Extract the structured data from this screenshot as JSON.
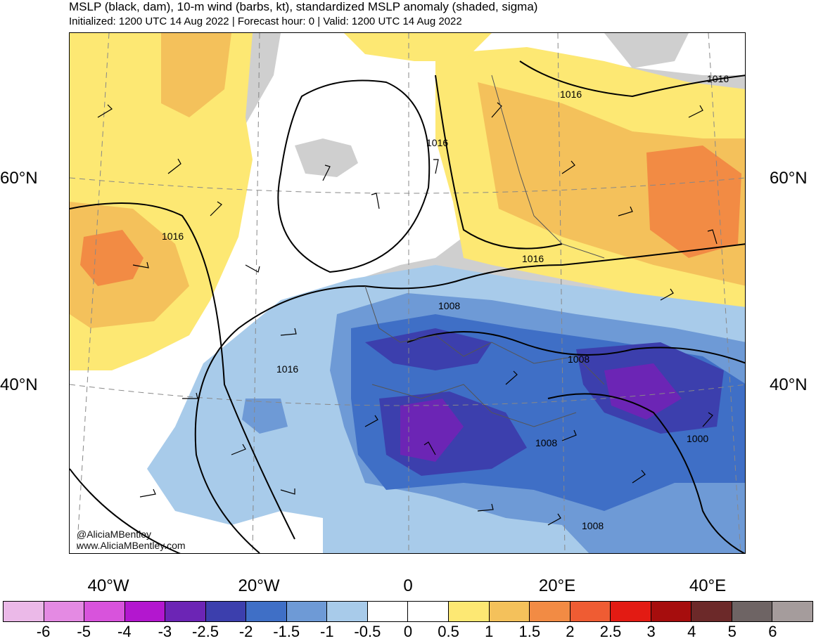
{
  "title": {
    "line1": "MSLP (black, dam), 10-m wind (barbs, kt), standardized MSLP anomaly (shaded, sigma)",
    "line2": "Initialized: 1200 UTC 14 Aug 2022 | Forecast hour: 0 | Valid: 1200 UTC 14 Aug 2022"
  },
  "map": {
    "lat_labels": [
      "60°N",
      "40°N",
      "60°N",
      "40°N"
    ],
    "lon_labels": [
      "40°W",
      "20°W",
      "0",
      "20°E",
      "40°E"
    ],
    "isobar_labels": [
      "1016",
      "1016",
      "1016",
      "1016",
      "1016",
      "1016",
      "1008",
      "1008",
      "1008",
      "1000",
      "1008"
    ],
    "credit_handle": "@AliciaMBentley",
    "credit_site": "www.AliciaMBentley.com"
  },
  "colorbar": {
    "labels": [
      "-6",
      "-5",
      "-4",
      "-3",
      "-2.5",
      "-2",
      "-1.5",
      "-1",
      "-0.5",
      "0",
      "0.5",
      "1",
      "1.5",
      "2",
      "2.5",
      "3",
      "4",
      "5",
      "6"
    ],
    "colors": [
      "#ebb9e8",
      "#e48ae3",
      "#d853dc",
      "#b317cf",
      "#6c25b5",
      "#3c3fad",
      "#3f6fc6",
      "#6e9ad6",
      "#a8cbea",
      "#ffffff",
      "#ffffff",
      "#fde873",
      "#f4c15b",
      "#f28b44",
      "#ef5c33",
      "#e31b13",
      "#a60d0d",
      "#6c2929",
      "#6e6464",
      "#a59c9c"
    ]
  }
}
